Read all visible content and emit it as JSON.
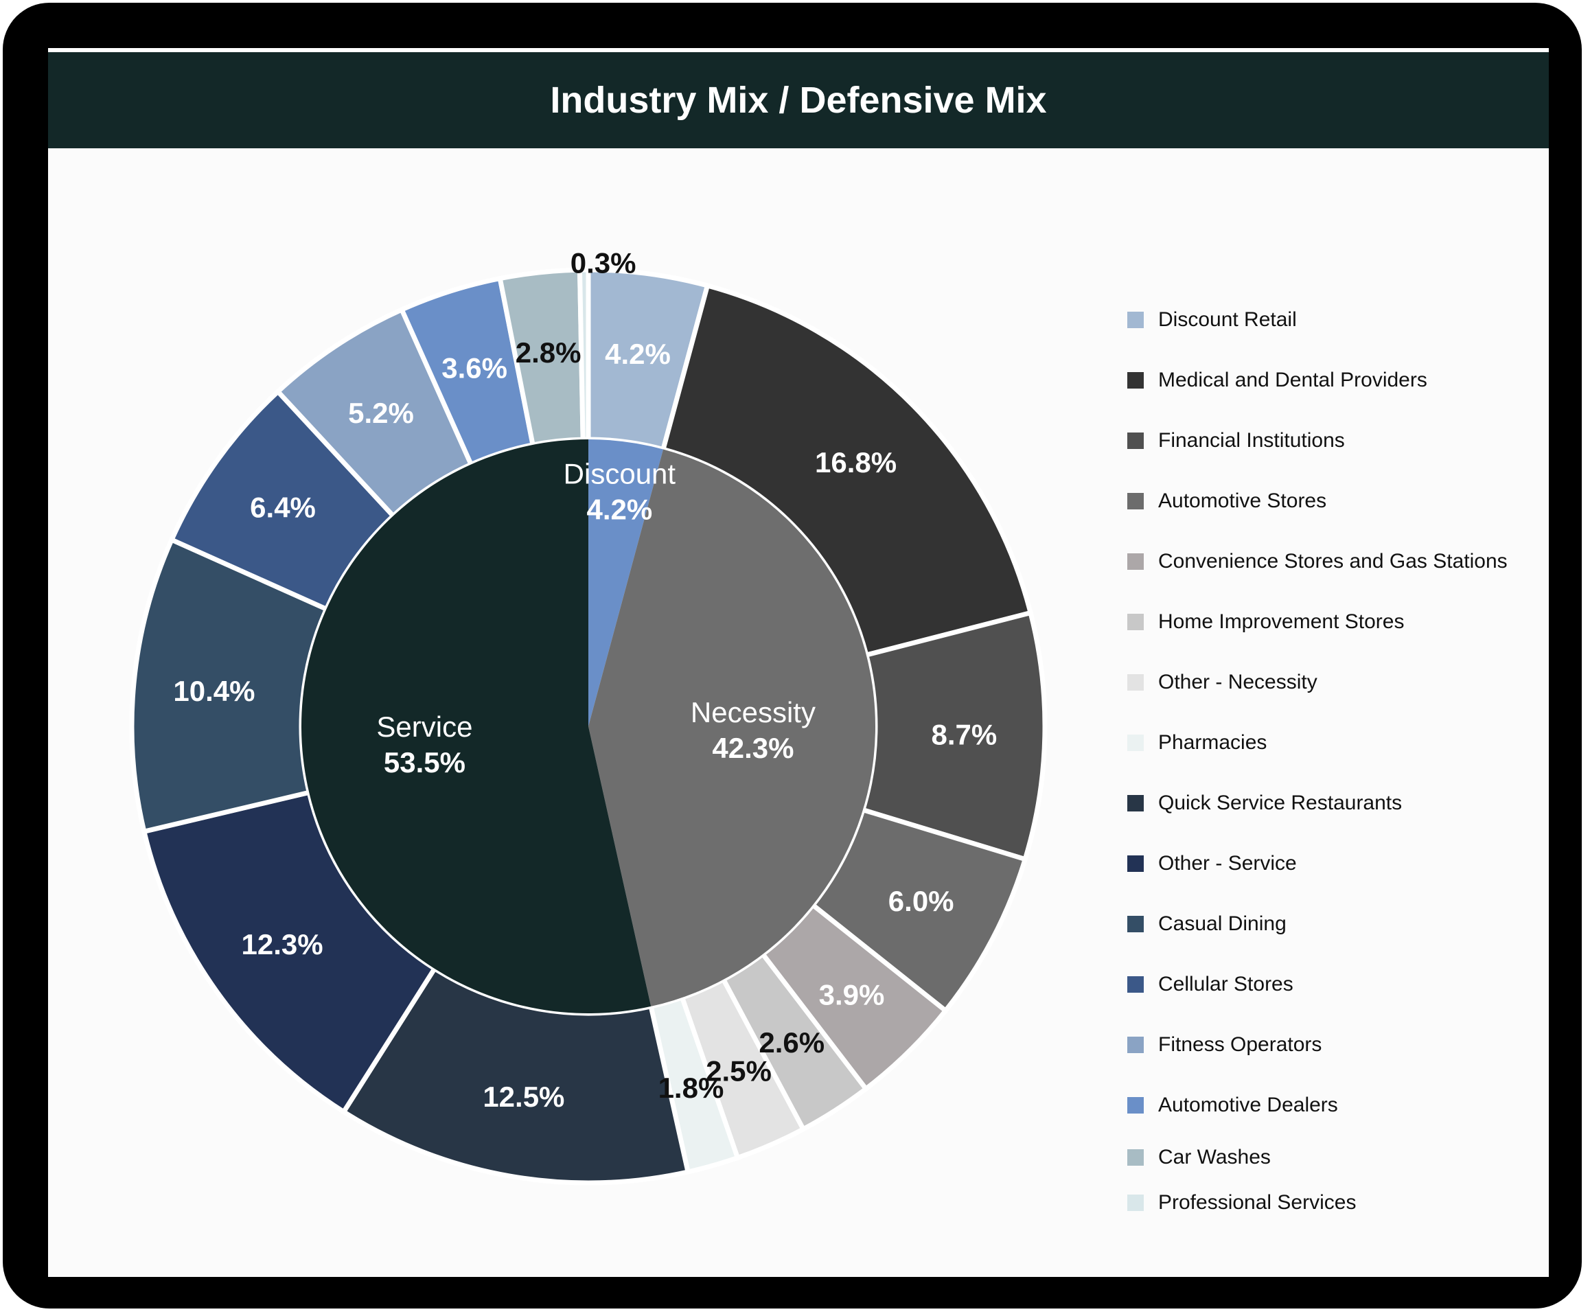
{
  "title": "Industry Mix / Defensive Mix",
  "chart_data": {
    "type": "pie",
    "variant": "nested-donut",
    "title": "Industry Mix / Defensive Mix",
    "legend_position": "right",
    "inner_ring": [
      {
        "name": "Discount",
        "value": 4.2,
        "label": "4.2%",
        "color": "#6a8fc8"
      },
      {
        "name": "Necessity",
        "value": 42.3,
        "label": "42.3%",
        "color": "#6e6e6e"
      },
      {
        "name": "Service",
        "value": 53.5,
        "label": "53.5%",
        "color": "#132828"
      }
    ],
    "outer_ring": [
      {
        "name": "Discount Retail",
        "value": 4.2,
        "label": "4.2%",
        "color": "#a2b8d2",
        "label_color": "#ffffff"
      },
      {
        "name": "Medical and Dental Providers",
        "value": 16.8,
        "label": "16.8%",
        "color": "#333333",
        "label_color": "#ffffff"
      },
      {
        "name": "Financial Institutions",
        "value": 8.7,
        "label": "8.7%",
        "color": "#505050",
        "label_color": "#ffffff"
      },
      {
        "name": "Automotive Stores",
        "value": 6.0,
        "label": "6.0%",
        "color": "#6c6c6c",
        "label_color": "#ffffff"
      },
      {
        "name": "Convenience Stores and Gas Stations",
        "value": 3.9,
        "label": "3.9%",
        "color": "#aca7a8",
        "label_color": "#ffffff"
      },
      {
        "name": "Home Improvement Stores",
        "value": 2.6,
        "label": "2.6%",
        "color": "#c8c8c8",
        "label_color": "#111111"
      },
      {
        "name": "Other - Necessity",
        "value": 2.5,
        "label": "2.5%",
        "color": "#e3e3e3",
        "label_color": "#111111"
      },
      {
        "name": "Pharmacies",
        "value": 1.8,
        "label": "1.8%",
        "color": "#ebf2f2",
        "label_color": "#111111"
      },
      {
        "name": "Quick Service Restaurants",
        "value": 12.5,
        "label": "12.5%",
        "color": "#283646",
        "label_color": "#ffffff"
      },
      {
        "name": "Other - Service",
        "value": 12.3,
        "label": "12.3%",
        "color": "#223255",
        "label_color": "#ffffff"
      },
      {
        "name": "Casual Dining",
        "value": 10.4,
        "label": "10.4%",
        "color": "#344e66",
        "label_color": "#ffffff"
      },
      {
        "name": "Cellular Stores",
        "value": 6.4,
        "label": "6.4%",
        "color": "#3b5888",
        "label_color": "#ffffff"
      },
      {
        "name": "Fitness Operators",
        "value": 5.2,
        "label": "5.2%",
        "color": "#8aa3c4",
        "label_color": "#ffffff"
      },
      {
        "name": "Automotive Dealers",
        "value": 3.6,
        "label": "3.6%",
        "color": "#6a8fc8",
        "label_color": "#ffffff"
      },
      {
        "name": "Car Washes",
        "value": 2.8,
        "label": "2.8%",
        "color": "#a8bcc4",
        "label_color": "#111111"
      },
      {
        "name": "Professional Services",
        "value": 0.3,
        "label": "0.3%",
        "color": "#d9e7ea",
        "label_color": "#111111"
      }
    ]
  }
}
